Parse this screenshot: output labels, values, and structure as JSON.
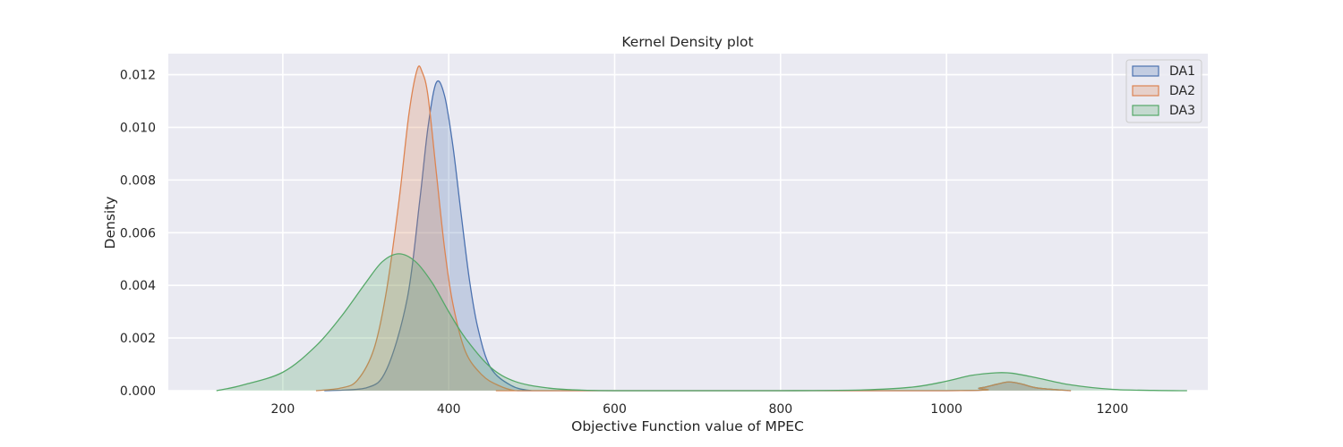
{
  "chart_data": {
    "type": "area",
    "title": "Kernel Density plot",
    "xlabel": "Objective Function value of MPEC",
    "ylabel": "Density",
    "xlim": [
      62,
      1315
    ],
    "ylim": [
      0,
      0.0128
    ],
    "xticks": [
      200,
      400,
      600,
      800,
      1000,
      1200
    ],
    "yticks": [
      0.0,
      0.002,
      0.004,
      0.006,
      0.008,
      0.01,
      0.012
    ],
    "ytick_labels": [
      "0.000",
      "0.002",
      "0.004",
      "0.006",
      "0.008",
      "0.010",
      "0.012"
    ],
    "grid": true,
    "legend_position": "top-right",
    "series": [
      {
        "name": "DA1",
        "color": "#4c72b0",
        "x": [
          250,
          300,
          325,
          350,
          365,
          375,
          385,
          395,
          405,
          415,
          425,
          435,
          450,
          475,
          500,
          525,
          1000,
          1040,
          1060,
          1075,
          1090,
          1110,
          1150
        ],
        "y": [
          0,
          0.0001,
          0.0008,
          0.0035,
          0.0072,
          0.01,
          0.0117,
          0.0112,
          0.0093,
          0.0067,
          0.0042,
          0.0024,
          0.0009,
          0.0002,
          0.0,
          0,
          0,
          0.0001,
          0.00024,
          0.00033,
          0.00026,
          0.0001,
          0
        ]
      },
      {
        "name": "DA2",
        "color": "#dd8452",
        "x": [
          240,
          270,
          290,
          310,
          325,
          340,
          352,
          362,
          368,
          375,
          385,
          395,
          405,
          420,
          440,
          460,
          480,
          500,
          1000,
          1040,
          1060,
          1075,
          1090,
          1110,
          1150
        ],
        "y": [
          0,
          0.0001,
          0.0004,
          0.0016,
          0.0038,
          0.0072,
          0.0105,
          0.0122,
          0.0121,
          0.0112,
          0.0083,
          0.0054,
          0.0033,
          0.0015,
          0.0006,
          0.0002,
          0.0,
          0,
          0,
          0.0001,
          0.00024,
          0.00033,
          0.00026,
          0.0001,
          0
        ]
      },
      {
        "name": "DA3",
        "color": "#55a868",
        "x": [
          120,
          150,
          200,
          240,
          270,
          300,
          320,
          340,
          360,
          380,
          400,
          420,
          450,
          480,
          520,
          560,
          600,
          700,
          800,
          900,
          960,
          1000,
          1030,
          1060,
          1080,
          1110,
          1150,
          1200,
          1250,
          1290
        ],
        "y": [
          0,
          0.0002,
          0.0007,
          0.0017,
          0.0028,
          0.0041,
          0.0049,
          0.0052,
          0.0049,
          0.0041,
          0.003,
          0.002,
          0.0009,
          0.00035,
          0.0001,
          2e-05,
          0,
          0,
          0,
          3e-05,
          0.00014,
          0.00036,
          0.00058,
          0.00068,
          0.00066,
          0.00048,
          0.00022,
          5e-05,
          1e-05,
          0
        ]
      }
    ]
  }
}
